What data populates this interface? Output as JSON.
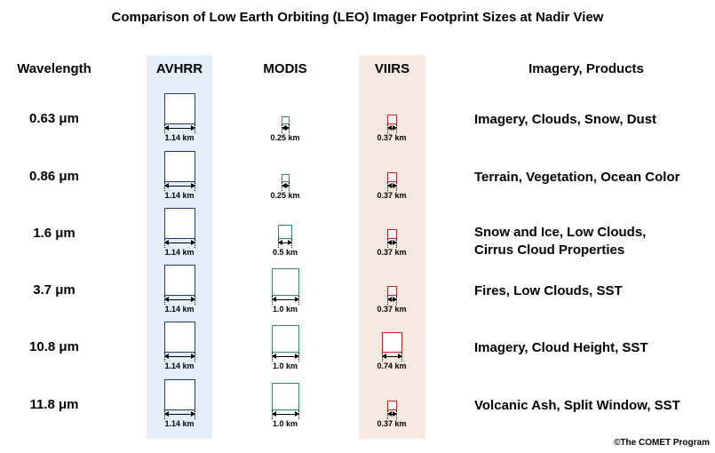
{
  "title": "Comparison of Low Earth Orbiting (LEO) Imager Footprint Sizes at Nadir View",
  "headers": {
    "wavelength": "Wavelength",
    "avhrr": "AVHRR",
    "modis": "MODIS",
    "viirs": "VIIRS",
    "products": "Imagery, Products"
  },
  "colors": {
    "avhrr": "#1f3d7a",
    "modis": "#2e8b57",
    "viirs": "#cc1f1f",
    "avhrr_band": "#e3eef9",
    "viirs_band": "#f5e9e2"
  },
  "rows": [
    {
      "wavelength": "0.63 μm",
      "avhrr_km": 1.14,
      "avhrr_label": "1.14 km",
      "modis_km": 0.25,
      "modis_label": "0.25 km",
      "viirs_km": 0.37,
      "viirs_label": "0.37 km",
      "products": [
        "Imagery, Clouds, Snow, Dust"
      ]
    },
    {
      "wavelength": "0.86 μm",
      "avhrr_km": 1.14,
      "avhrr_label": "1.14 km",
      "modis_km": 0.25,
      "modis_label": "0.25 km",
      "viirs_km": 0.37,
      "viirs_label": "0.37 km",
      "products": [
        "Terrain, Vegetation, Ocean Color"
      ]
    },
    {
      "wavelength": "1.6 μm",
      "avhrr_km": 1.14,
      "avhrr_label": "1.14 km",
      "modis_km": 0.5,
      "modis_label": "0.5 km",
      "viirs_km": 0.37,
      "viirs_label": "0.37 km",
      "products": [
        "Snow and Ice, Low Clouds,",
        "Cirrus Cloud Properties"
      ]
    },
    {
      "wavelength": "3.7 μm",
      "avhrr_km": 1.14,
      "avhrr_label": "1.14 km",
      "modis_km": 1.0,
      "modis_label": "1.0 km",
      "viirs_km": 0.37,
      "viirs_label": "0.37 km",
      "products": [
        "Fires, Low Clouds, SST"
      ]
    },
    {
      "wavelength": "10.8 μm",
      "avhrr_km": 1.14,
      "avhrr_label": "1.14 km",
      "modis_km": 1.0,
      "modis_label": "1.0 km",
      "viirs_km": 0.74,
      "viirs_label": "0.74 km",
      "products": [
        "Imagery, Cloud Height, SST"
      ]
    },
    {
      "wavelength": "11.8 μm",
      "avhrr_km": 1.14,
      "avhrr_label": "1.14 km",
      "modis_km": 1.0,
      "modis_label": "1.0 km",
      "viirs_km": 0.37,
      "viirs_label": "0.37 km",
      "products": [
        "Volcanic Ash, Split Window, SST"
      ]
    }
  ],
  "copyright": "©The COMET Program"
}
